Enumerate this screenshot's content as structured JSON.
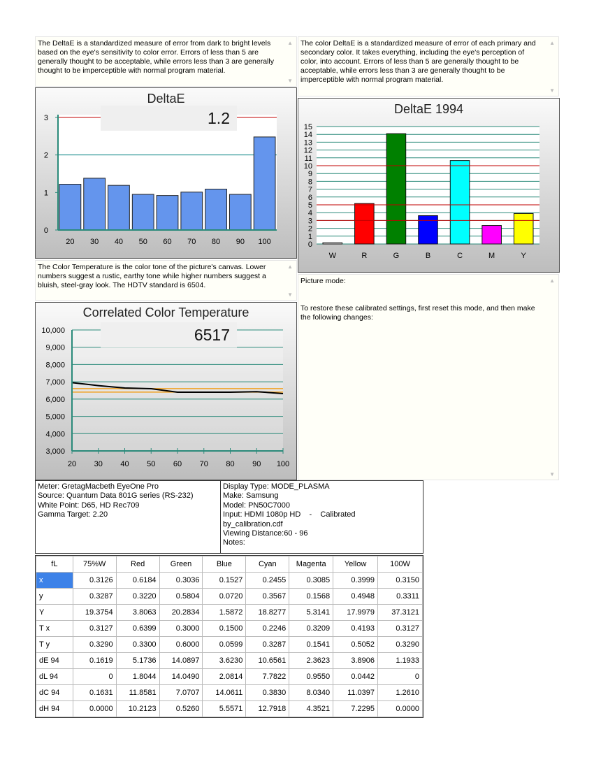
{
  "deltae_desc": "The DeltaE is a standardized measure of error from dark to bright levels based on the eye's sensitivity to color error. Errors of less than 5 are generally thought to be acceptable, while errors less than 3 are generally thought to be imperceptible with normal program material.",
  "color_deltae_desc": "The color DeltaE is a standardized measure of error of each primary and secondary color. It takes everything, including the eye's perception of color, into account. Errors of less than 5 are generally thought to be acceptable, while errors less than 3 are generally thought to be imperceptible with normal program material.",
  "color_temp_desc": "The Color Temperature is the color tone of the picture's canvas. Lower numbers suggest a rustic, earthy tone while higher numbers suggest a bluish, steel-gray look. The HDTV standard is 6504.",
  "picture_mode_label": "Picture mode:",
  "restore_text": "To restore these calibrated settings, first reset this mode, and then make the following changes:",
  "chart_data": [
    {
      "type": "bar",
      "title": "DeltaE",
      "value_display": "1.2",
      "categories": [
        "20",
        "30",
        "40",
        "50",
        "60",
        "70",
        "80",
        "90",
        "100"
      ],
      "values": [
        1.22,
        1.38,
        1.19,
        0.95,
        0.92,
        1.01,
        1.09,
        0.95,
        2.48
      ],
      "ylim": [
        0,
        3
      ],
      "yticks": [
        "0",
        "1",
        "2",
        "3"
      ],
      "bar_color": "#6495ed",
      "reference_lines": [
        {
          "value": 3,
          "color": "#c00000"
        },
        {
          "value": 2,
          "color": "#008080"
        }
      ]
    },
    {
      "type": "bar",
      "title": "DeltaE 1994",
      "categories": [
        "W",
        "R",
        "G",
        "B",
        "C",
        "M",
        "Y"
      ],
      "values": [
        0.16,
        5.17,
        14.09,
        3.62,
        10.66,
        2.36,
        3.89
      ],
      "colors": [
        "#ffffff",
        "#ff0000",
        "#008000",
        "#0000ff",
        "#00ffff",
        "#ff00ff",
        "#ffff00"
      ],
      "ylim": [
        0,
        15
      ],
      "yticks": [
        "0",
        "1",
        "2",
        "3",
        "4",
        "5",
        "6",
        "7",
        "8",
        "9",
        "10",
        "11",
        "12",
        "13",
        "14",
        "15"
      ],
      "reference_lines": [
        {
          "value": 3,
          "color": "#c00000"
        },
        {
          "value": 5,
          "color": "#c00000"
        },
        {
          "value": 10,
          "color": "#c00000"
        }
      ]
    },
    {
      "type": "line",
      "title": "Correlated Color Temperature",
      "value_display": "6517",
      "x": [
        20,
        30,
        40,
        50,
        60,
        70,
        80,
        90,
        100
      ],
      "xticks": [
        "20",
        "30",
        "40",
        "50",
        "60",
        "70",
        "80",
        "90",
        "100"
      ],
      "y": [
        6950,
        6780,
        6640,
        6600,
        6400,
        6400,
        6400,
        6430,
        6320
      ],
      "ylim": [
        3000,
        10000
      ],
      "yticks": [
        "3,000",
        "4,000",
        "5,000",
        "6,000",
        "7,000",
        "8,000",
        "9,000",
        "10,000"
      ],
      "target": 6504,
      "target_color": "#f0a020",
      "line_color": "#000000"
    }
  ],
  "meter_info": [
    "Meter: GretagMacbeth EyeOne Pro",
    "Source: Quantum Data 801G series (RS-232)",
    "White Point: D65, HD Rec709",
    "Gamma Target: 2.20"
  ],
  "display_info": [
    "Display Type: MODE_PLASMA",
    "Make: Samsung",
    "Model: PN50C7000",
    "Input: HDMI 1080p HD    -    Calibrated",
    "by_calibration.cdf",
    "Viewing Distance:60 - 96",
    "Notes:"
  ],
  "table": {
    "headers": [
      "fL",
      "75%W",
      "Red",
      "Green",
      "Blue",
      "Cyan",
      "Magenta",
      "Yellow",
      "100W"
    ],
    "rows": [
      [
        "x",
        "0.3126",
        "0.6184",
        "0.3036",
        "0.1527",
        "0.2455",
        "0.3085",
        "0.3999",
        "0.3150"
      ],
      [
        "y",
        "0.3287",
        "0.3220",
        "0.5804",
        "0.0720",
        "0.3567",
        "0.1568",
        "0.4948",
        "0.3311"
      ],
      [
        "Y",
        "19.3754",
        "3.8063",
        "20.2834",
        "1.5872",
        "18.8277",
        "5.3141",
        "17.9979",
        "37.3121"
      ],
      [
        "T x",
        "0.3127",
        "0.6399",
        "0.3000",
        "0.1500",
        "0.2246",
        "0.3209",
        "0.4193",
        "0.3127"
      ],
      [
        "T y",
        "0.3290",
        "0.3300",
        "0.6000",
        "0.0599",
        "0.3287",
        "0.1541",
        "0.5052",
        "0.3290"
      ],
      [
        "dE 94",
        "0.1619",
        "5.1736",
        "14.0897",
        "3.6230",
        "10.6561",
        "2.3623",
        "3.8906",
        "1.1933"
      ],
      [
        "dL 94",
        "0",
        "1.8044",
        "14.0490",
        "2.0814",
        "7.7822",
        "0.9550",
        "0.0442",
        "0"
      ],
      [
        "dC 94",
        "0.1631",
        "11.8581",
        "7.0707",
        "14.0611",
        "0.3830",
        "8.0340",
        "11.0397",
        "1.2610"
      ],
      [
        "dH 94",
        "0.0000",
        "10.2123",
        "0.5260",
        "5.5571",
        "12.7918",
        "4.3521",
        "7.2295",
        "0.0000"
      ]
    ]
  }
}
